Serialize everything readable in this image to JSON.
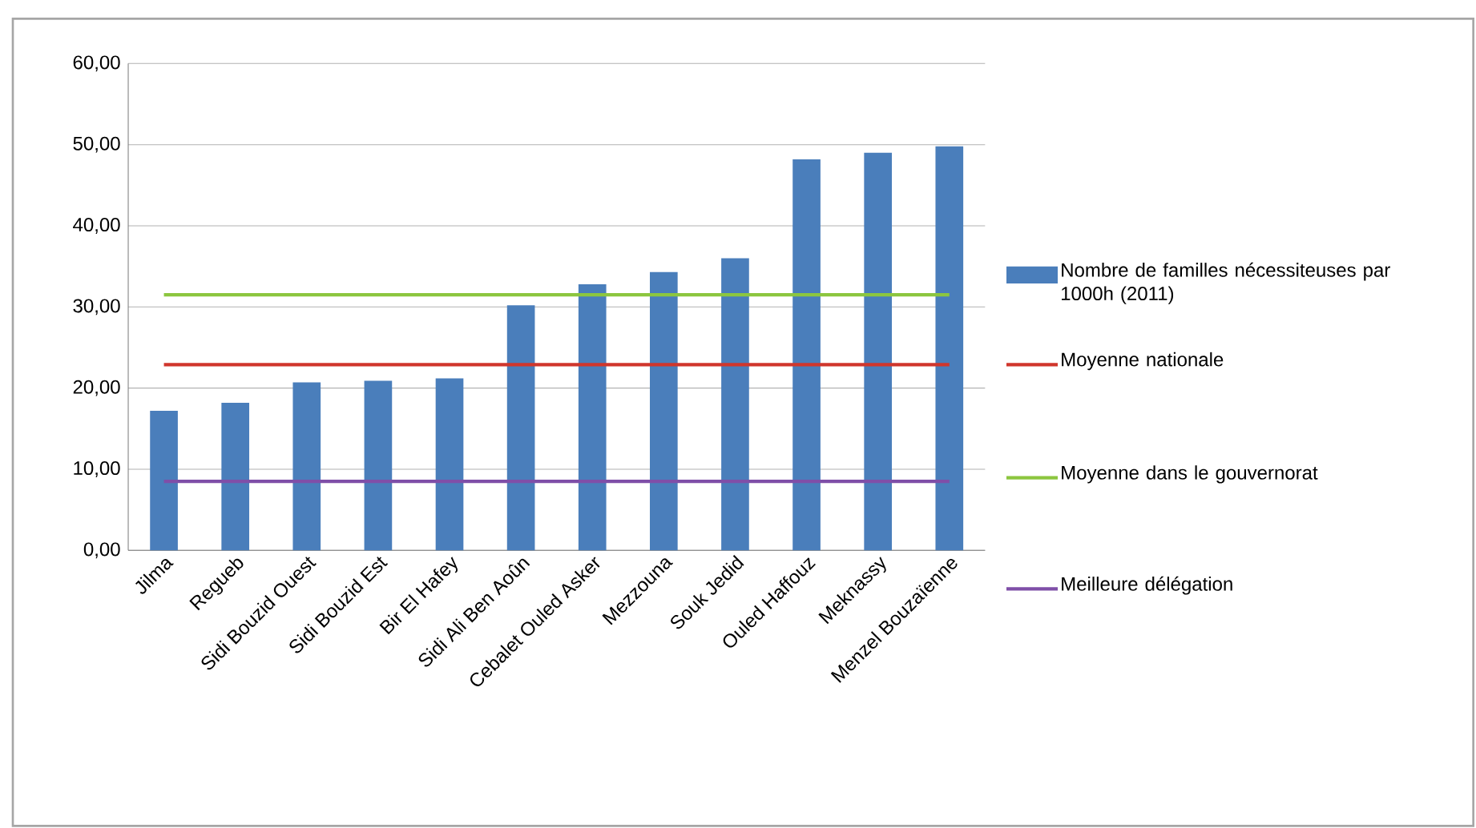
{
  "chart_data": {
    "type": "bar",
    "categories": [
      "Jilma",
      "Regueb",
      "Sidi Bouzid Ouest",
      "Sidi Bouzid Est",
      "Bir El Hafey",
      "Sidi Ali Ben Aoûn",
      "Cebalet Ouled Asker",
      "Mezzouna",
      "Souk Jedid",
      "Ouled Haffouz",
      "Meknassy",
      "Menzel Bouzaïenne"
    ],
    "series": [
      {
        "name": "Nombre de familles nécessiteuses par 1000h (2011)",
        "color": "#4a7ebb",
        "values": [
          17.2,
          18.2,
          20.7,
          20.9,
          21.2,
          30.2,
          32.8,
          34.3,
          36.0,
          48.2,
          49.0,
          49.8
        ]
      },
      {
        "name": "Moyenne nationale",
        "type": "line",
        "color": "#d0362c",
        "values": [
          22.9,
          22.9,
          22.9,
          22.9,
          22.9,
          22.9,
          22.9,
          22.9,
          22.9,
          22.9,
          22.9,
          22.9
        ]
      },
      {
        "name": "Moyenne dans le gouvernorat",
        "type": "line",
        "color": "#8cc63f",
        "values": [
          31.5,
          31.5,
          31.5,
          31.5,
          31.5,
          31.5,
          31.5,
          31.5,
          31.5,
          31.5,
          31.5,
          31.5
        ]
      },
      {
        "name": "Meilleure délégation",
        "type": "line",
        "color": "#7f4fa8",
        "values": [
          8.5,
          8.5,
          8.5,
          8.5,
          8.5,
          8.5,
          8.5,
          8.5,
          8.5,
          8.5,
          8.5,
          8.5
        ]
      }
    ],
    "ylim": [
      0,
      60
    ],
    "yticks": [
      {
        "value": 0,
        "label": "0,00"
      },
      {
        "value": 10,
        "label": "10,00"
      },
      {
        "value": 20,
        "label": "20,00"
      },
      {
        "value": 30,
        "label": "30,00"
      },
      {
        "value": 40,
        "label": "40,00"
      },
      {
        "value": 50,
        "label": "50,00"
      },
      {
        "value": 60,
        "label": "60,00"
      }
    ],
    "grid": "y",
    "legend": "right"
  }
}
